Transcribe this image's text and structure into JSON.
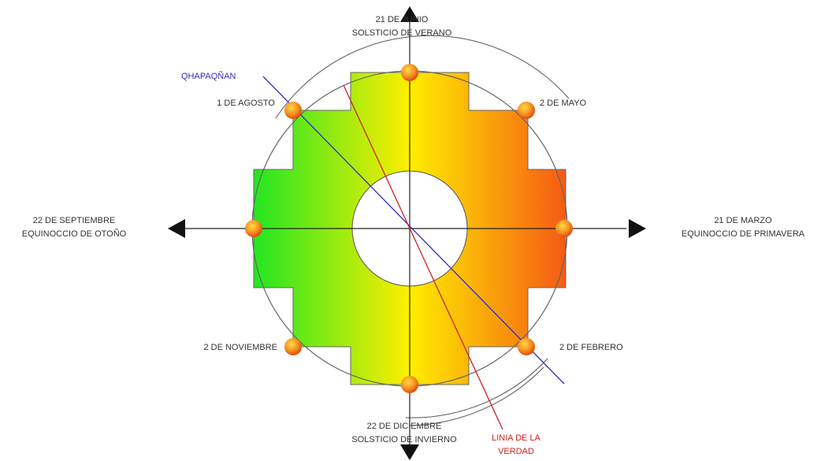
{
  "labels": {
    "north_line1": "21 DE JUNIO",
    "north_line2": "SOLSTICIO DE VERANO",
    "east_line1": "21 DE MARZO",
    "east_line2": "EQUINOCCIO DE PRIMAVERA",
    "west_line1": "22 DE SEPTIEMBRE",
    "west_line2": "EQUINOCCIO DE OTOÑO",
    "south_line1": "22 DE DICIEMBRE",
    "south_line2": "SOLSTICIO DE INVIERNO",
    "northeast": "2 DE MAYO",
    "northwest": "1 DE AGOSTO",
    "southwest": "2 DE NOVIEMBRE",
    "southeast": "2 DE FEBRERO",
    "qhapaqnan": "QHAPAQÑAN",
    "linia_line1": "LINIA DE LA",
    "linia_line2": "VERDAD"
  },
  "colors": {
    "gradient_green": "#22e622",
    "gradient_yellow": "#ffee00",
    "gradient_orange": "#f55a14",
    "axis": "#222222",
    "qhapaqnan_line": "#3030c0",
    "verdad_line": "#d02020",
    "marker_outer": "#e85010",
    "marker_inner": "#ffcc33"
  }
}
